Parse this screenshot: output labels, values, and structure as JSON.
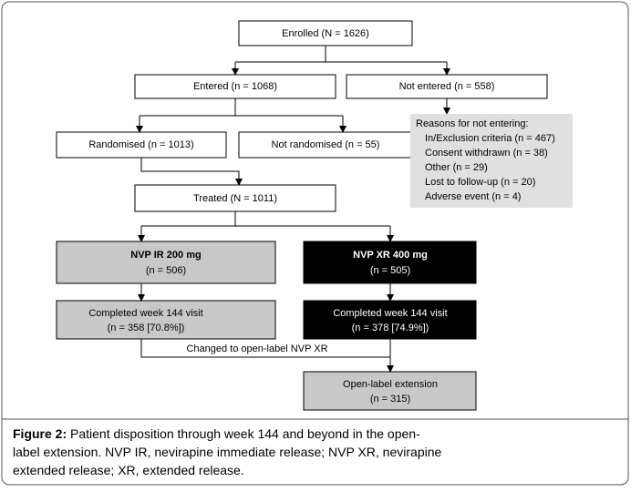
{
  "nodes": [
    {
      "label": "Enrolled (N = 1626)"
    },
    {
      "label": "Entered (n = 1068)"
    },
    {
      "label": "Not entered (n = 558)"
    },
    {
      "label": "Randomised (n = 1013)"
    },
    {
      "label": "Not randomised (n = 55)"
    },
    {
      "label": "Treated (N = 1011)"
    },
    {
      "label": "NVP IR 200 mg",
      "sublabel": "(n = 506)"
    },
    {
      "label": "NVP XR 400 mg",
      "sublabel": "(n = 505)"
    },
    {
      "label": "Completed week 144 visit",
      "sublabel": "(n = 358  [70.8%])"
    },
    {
      "label": "Completed week 144 visit",
      "sublabel": "(n = 378 [74.9%])"
    },
    {
      "label": "Open-label extension",
      "sublabel": "(n = 315)"
    }
  ],
  "reasons": {
    "title": "Reasons for not entering:",
    "items": [
      "In/Exclusion criteria (n = 467)",
      "Consent withdrawn (n = 38)",
      "Other (n = 29)",
      "Lost to follow-up (n = 20)",
      "Adverse event (n = 4)"
    ]
  },
  "edge_label": "Changed to open-label NVP XR",
  "caption": {
    "label": "Figure 2:",
    "lines": [
      "Patient disposition through week 144 and beyond in the open-",
      "label extension. NVP IR, nevirapine immediate release; NVP XR, nevirapine",
      "extended release; XR, extended release."
    ]
  }
}
